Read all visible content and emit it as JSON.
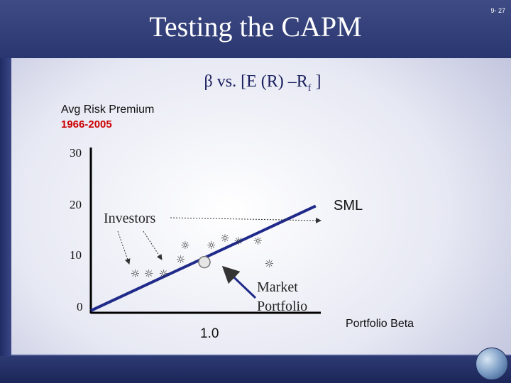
{
  "slide": {
    "title": "Testing the CAPM",
    "slide_number": "9- 27"
  },
  "subtitle": {
    "beta_symbol": "β",
    "text": " vs. [E (R) –R",
    "sub": "f",
    "end": " ]"
  },
  "colors": {
    "header": "#2f3b78",
    "text": "#1a1f5e",
    "risk_period": "#cc0000",
    "sml": "#1f2a8a",
    "stars": "#333333"
  },
  "chart_data": {
    "type": "scatter",
    "title": "β vs. [E (R) –Rf ]",
    "ylabel_lines": [
      "Avg Risk Premium",
      "1966-2005"
    ],
    "xlabel": "Portfolio Beta",
    "y_ticks": [
      "30",
      "20",
      "10",
      "0"
    ],
    "x_tick": "1.0",
    "ylim": [
      0,
      30
    ],
    "xlim": [
      0,
      2.2
    ],
    "sml": {
      "label": "SML",
      "from": [
        0,
        0
      ],
      "to": [
        1.98,
        20.5
      ]
    },
    "market_portfolio": {
      "label_lines": [
        "Market",
        "Portfolio"
      ],
      "point": [
        1.0,
        9.5
      ]
    },
    "investors_label": "Investors",
    "portfolios": [
      {
        "x": 0.39,
        "y": 7.2
      },
      {
        "x": 0.51,
        "y": 7.2
      },
      {
        "x": 0.64,
        "y": 7.2
      },
      {
        "x": 0.79,
        "y": 10.0
      },
      {
        "x": 0.83,
        "y": 12.8
      },
      {
        "x": 1.06,
        "y": 12.8
      },
      {
        "x": 1.18,
        "y": 14.2
      },
      {
        "x": 1.3,
        "y": 13.6
      },
      {
        "x": 1.47,
        "y": 13.6
      },
      {
        "x": 1.57,
        "y": 9.2
      }
    ]
  }
}
